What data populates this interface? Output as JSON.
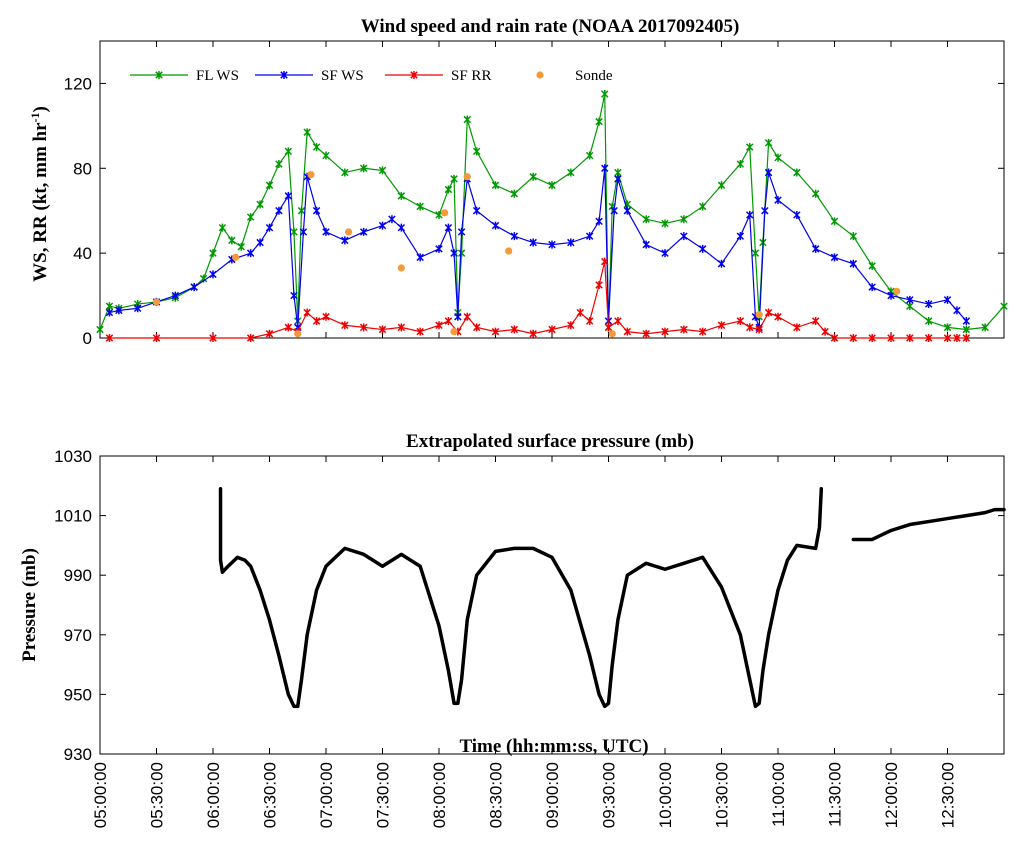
{
  "chart_data": [
    {
      "type": "line",
      "title": "Wind speed and rain rate (NOAA 2017092405)",
      "ylabel": "WS, RR (kt, mm hr",
      "ylabel_sup": "-1",
      "ylabel_close": ")",
      "xlim": [
        "05:00:00",
        "13:00:00"
      ],
      "ylim": [
        0,
        140
      ],
      "yticks": [
        "0",
        "40",
        "80",
        "120"
      ],
      "ytick_values": [
        0,
        40,
        80,
        120
      ],
      "legend": "top-left",
      "series": [
        {
          "name": "FL WS",
          "color": "#009900",
          "x": [
            "05:00",
            "05:05",
            "05:10",
            "05:20",
            "05:30",
            "05:40",
            "05:50",
            "05:55",
            "06:00",
            "06:05",
            "06:10",
            "06:15",
            "06:20",
            "06:25",
            "06:30",
            "06:35",
            "06:40",
            "06:43",
            "06:45",
            "06:47",
            "06:50",
            "06:55",
            "07:00",
            "07:10",
            "07:20",
            "07:30",
            "07:40",
            "07:50",
            "08:00",
            "08:05",
            "08:08",
            "08:10",
            "08:12",
            "08:15",
            "08:20",
            "08:30",
            "08:40",
            "08:50",
            "09:00",
            "09:10",
            "09:20",
            "09:25",
            "09:28",
            "09:30",
            "09:32",
            "09:35",
            "09:40",
            "09:50",
            "10:00",
            "10:10",
            "10:20",
            "10:30",
            "10:40",
            "10:45",
            "10:48",
            "10:50",
            "10:52",
            "10:55",
            "11:00",
            "11:10",
            "11:20",
            "11:30",
            "11:40",
            "11:50",
            "12:00",
            "12:10",
            "12:20",
            "12:30",
            "12:40",
            "12:50",
            "13:00"
          ],
          "values": [
            4,
            15,
            14,
            16,
            17,
            19,
            24,
            28,
            40,
            52,
            46,
            43,
            57,
            63,
            72,
            82,
            88,
            50,
            8,
            60,
            97,
            90,
            86,
            78,
            80,
            79,
            67,
            62,
            58,
            70,
            75,
            12,
            40,
            103,
            88,
            72,
            68,
            76,
            72,
            78,
            86,
            102,
            115,
            5,
            62,
            78,
            63,
            56,
            54,
            56,
            62,
            72,
            82,
            90,
            40,
            10,
            45,
            92,
            85,
            78,
            68,
            55,
            48,
            34,
            22,
            15,
            8,
            5,
            4,
            5,
            15
          ]
        },
        {
          "name": "SF WS",
          "color": "#0000ee",
          "x": [
            "05:05",
            "05:10",
            "05:20",
            "05:30",
            "05:40",
            "05:50",
            "06:00",
            "06:10",
            "06:20",
            "06:25",
            "06:30",
            "06:35",
            "06:40",
            "06:43",
            "06:45",
            "06:48",
            "06:50",
            "06:55",
            "07:00",
            "07:10",
            "07:20",
            "07:30",
            "07:35",
            "07:40",
            "07:50",
            "08:00",
            "08:05",
            "08:08",
            "08:10",
            "08:12",
            "08:15",
            "08:20",
            "08:30",
            "08:40",
            "08:50",
            "09:00",
            "09:10",
            "09:20",
            "09:25",
            "09:28",
            "09:30",
            "09:33",
            "09:35",
            "09:40",
            "09:50",
            "10:00",
            "10:10",
            "10:20",
            "10:30",
            "10:40",
            "10:45",
            "10:48",
            "10:50",
            "10:53",
            "10:55",
            "11:00",
            "11:10",
            "11:20",
            "11:30",
            "11:40",
            "11:50",
            "12:00",
            "12:10",
            "12:20",
            "12:30",
            "12:35",
            "12:40"
          ],
          "values": [
            12,
            13,
            14,
            17,
            20,
            24,
            30,
            37,
            40,
            45,
            52,
            60,
            67,
            20,
            5,
            50,
            76,
            60,
            50,
            46,
            50,
            53,
            56,
            52,
            38,
            42,
            52,
            40,
            10,
            50,
            75,
            60,
            53,
            48,
            45,
            44,
            45,
            48,
            55,
            80,
            8,
            60,
            75,
            60,
            44,
            40,
            48,
            42,
            35,
            48,
            58,
            10,
            5,
            60,
            78,
            65,
            58,
            42,
            38,
            35,
            24,
            20,
            18,
            16,
            18,
            13,
            8
          ]
        },
        {
          "name": "SF RR",
          "color": "#ee0000",
          "x": [
            "05:05",
            "05:30",
            "06:00",
            "06:20",
            "06:30",
            "06:40",
            "06:45",
            "06:50",
            "06:55",
            "07:00",
            "07:10",
            "07:20",
            "07:30",
            "07:40",
            "07:50",
            "08:00",
            "08:05",
            "08:10",
            "08:15",
            "08:20",
            "08:30",
            "08:40",
            "08:50",
            "09:00",
            "09:10",
            "09:15",
            "09:20",
            "09:25",
            "09:28",
            "09:30",
            "09:35",
            "09:40",
            "09:50",
            "10:00",
            "10:10",
            "10:20",
            "10:30",
            "10:40",
            "10:45",
            "10:50",
            "10:55",
            "11:00",
            "11:10",
            "11:20",
            "11:25",
            "11:30",
            "11:40",
            "11:50",
            "12:00",
            "12:10",
            "12:20",
            "12:30",
            "12:35",
            "12:40"
          ],
          "values": [
            0,
            0,
            0,
            0,
            2,
            5,
            3,
            12,
            8,
            10,
            6,
            5,
            4,
            5,
            3,
            6,
            8,
            3,
            10,
            5,
            3,
            4,
            2,
            4,
            6,
            12,
            8,
            25,
            36,
            5,
            8,
            3,
            2,
            3,
            4,
            3,
            6,
            8,
            5,
            4,
            12,
            10,
            5,
            8,
            3,
            0,
            0,
            0,
            0,
            0,
            0,
            0,
            0,
            0
          ]
        },
        {
          "name": "Sonde",
          "color": "#f59a3a",
          "marker_only": true,
          "x": [
            "05:30",
            "06:12",
            "06:45",
            "06:52",
            "07:12",
            "07:40",
            "08:03",
            "08:08",
            "08:15",
            "08:37",
            "09:32",
            "10:50",
            "12:03"
          ],
          "values": [
            17,
            38,
            2,
            77,
            50,
            33,
            59,
            3,
            76,
            41,
            2,
            11,
            22
          ]
        }
      ]
    },
    {
      "type": "line",
      "title": "Extrapolated surface pressure (mb)",
      "xlabel": "Time (hh:mm:ss, UTC)",
      "ylabel": "Pressure (mb)",
      "ylim": [
        930,
        1030
      ],
      "yticks": [
        "930",
        "950",
        "970",
        "990",
        "1010",
        "1030"
      ],
      "ytick_values": [
        930,
        950,
        970,
        990,
        1010,
        1030
      ],
      "xticks": [
        "05:00:00",
        "05:30:00",
        "06:00:00",
        "06:30:00",
        "07:00:00",
        "07:30:00",
        "08:00:00",
        "08:30:00",
        "09:00:00",
        "09:30:00",
        "10:00:00",
        "10:30:00",
        "11:00:00",
        "11:30:00",
        "12:00:00",
        "12:30:00"
      ],
      "series": [
        {
          "name": "Pressure",
          "color": "#000000",
          "segments": [
            {
              "x": [
                "06:04",
                "06:04",
                "06:05",
                "06:08",
                "06:13",
                "06:17",
                "06:20",
                "06:25",
                "06:30",
                "06:35",
                "06:40",
                "06:43",
                "06:45",
                "06:47",
                "06:50",
                "06:55",
                "07:00",
                "07:10",
                "07:20",
                "07:30",
                "07:40",
                "07:50",
                "08:00",
                "08:05",
                "08:08",
                "08:10",
                "08:12",
                "08:15",
                "08:20",
                "08:30",
                "08:40",
                "08:50",
                "09:00",
                "09:10",
                "09:20",
                "09:25",
                "09:28",
                "09:30",
                "09:32",
                "09:35",
                "09:40",
                "09:50",
                "10:00",
                "10:10",
                "10:20",
                "10:30",
                "10:40",
                "10:45",
                "10:48",
                "10:50",
                "10:52",
                "10:55",
                "11:00",
                "11:05",
                "11:10",
                "11:20",
                "11:22",
                "11:23"
              ],
              "values": [
                1019,
                995,
                991,
                993,
                996,
                995,
                993,
                985,
                975,
                963,
                950,
                946,
                946,
                955,
                970,
                985,
                993,
                999,
                997,
                993,
                997,
                993,
                973,
                958,
                947,
                947,
                955,
                975,
                990,
                998,
                999,
                999,
                996,
                985,
                963,
                950,
                946,
                947,
                960,
                975,
                990,
                994,
                992,
                994,
                996,
                986,
                970,
                955,
                946,
                947,
                958,
                970,
                985,
                995,
                1000,
                999,
                1006,
                1019
              ]
            },
            {
              "x": [
                "11:40",
                "11:50",
                "12:00",
                "12:10",
                "12:20",
                "12:30",
                "12:40",
                "12:50",
                "12:55",
                "13:00"
              ],
              "values": [
                1002,
                1002,
                1005,
                1007,
                1008,
                1009,
                1010,
                1011,
                1012,
                1012
              ]
            }
          ]
        }
      ]
    }
  ]
}
